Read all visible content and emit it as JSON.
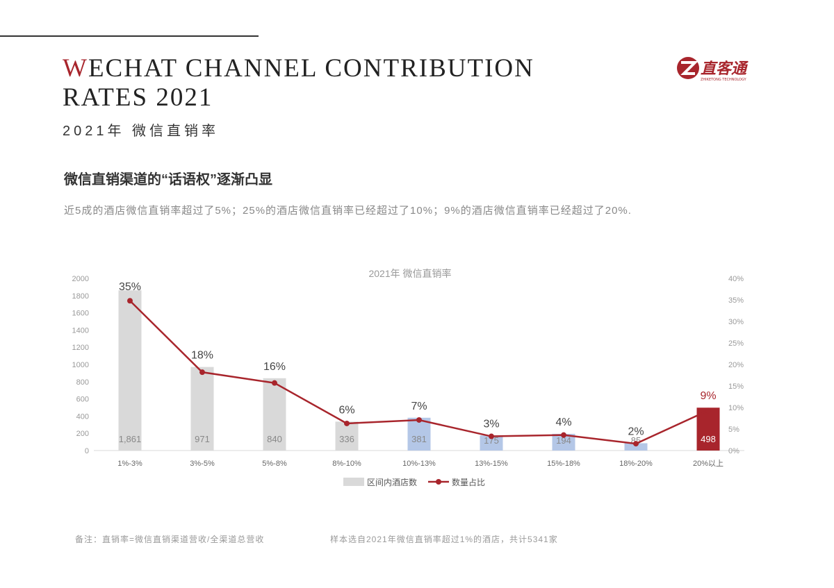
{
  "header": {
    "title_first": "W",
    "title_rest_line1": "ECHAT CHANNEL CONTRIBUTION",
    "title_line2": "RATES 2021",
    "subtitle": "2021年 微信直销率",
    "logo_text": "直客通",
    "logo_subtext": "ZHIKETONG TECHNOLOGY",
    "accent": "#a8252c"
  },
  "section": {
    "heading": "微信直销渠道的“话语权”逐渐凸显",
    "description": "近5成的酒店微信直销率超过了5%；25%的酒店微信直销率已经超过了10%；9%的酒店微信直销率已经超过了20%."
  },
  "footer": {
    "note": "备注：直销率=微信直销渠道营收/全渠道总营收",
    "sample": "样本选自2021年微信直销率超过1%的酒店，共计5341家"
  },
  "chart_data": {
    "type": "bar+line",
    "title": "2021年 微信直销率",
    "categories": [
      "1%-3%",
      "3%-5%",
      "5%-8%",
      "8%-10%",
      "10%-13%",
      "13%-15%",
      "15%-18%",
      "18%-20%",
      "20%以上"
    ],
    "series": [
      {
        "name": "区间内酒店数",
        "type": "bar",
        "axis": "left",
        "values": [
          1861,
          971,
          840,
          336,
          381,
          175,
          194,
          85,
          498
        ],
        "labels": [
          "1,861",
          "971",
          "840",
          "336",
          "381",
          "175",
          "194",
          "85",
          "498"
        ],
        "colors": [
          "#d9d9d9",
          "#d9d9d9",
          "#d9d9d9",
          "#d9d9d9",
          "#b4c7e7",
          "#b4c7e7",
          "#b4c7e7",
          "#b4c7e7",
          "#a8252c"
        ]
      },
      {
        "name": "数量占比",
        "type": "line",
        "axis": "right",
        "values": [
          34.8,
          18.2,
          15.7,
          6.3,
          7.1,
          3.3,
          3.6,
          1.6,
          9.3
        ],
        "labels": [
          "35%",
          "18%",
          "16%",
          "6%",
          "7%",
          "3%",
          "4%",
          "2%",
          "9%"
        ],
        "color": "#a8252c"
      }
    ],
    "y_left": {
      "min": 0,
      "max": 2000,
      "ticks": [
        "0",
        "200",
        "400",
        "600",
        "800",
        "1000",
        "1200",
        "1400",
        "1600",
        "1800",
        "2000"
      ]
    },
    "y_right": {
      "min": 0,
      "max": 40,
      "ticks": [
        "0%",
        "5%",
        "10%",
        "15%",
        "20%",
        "25%",
        "30%",
        "35%",
        "40%"
      ]
    },
    "grid": false,
    "legend": "bottom"
  }
}
